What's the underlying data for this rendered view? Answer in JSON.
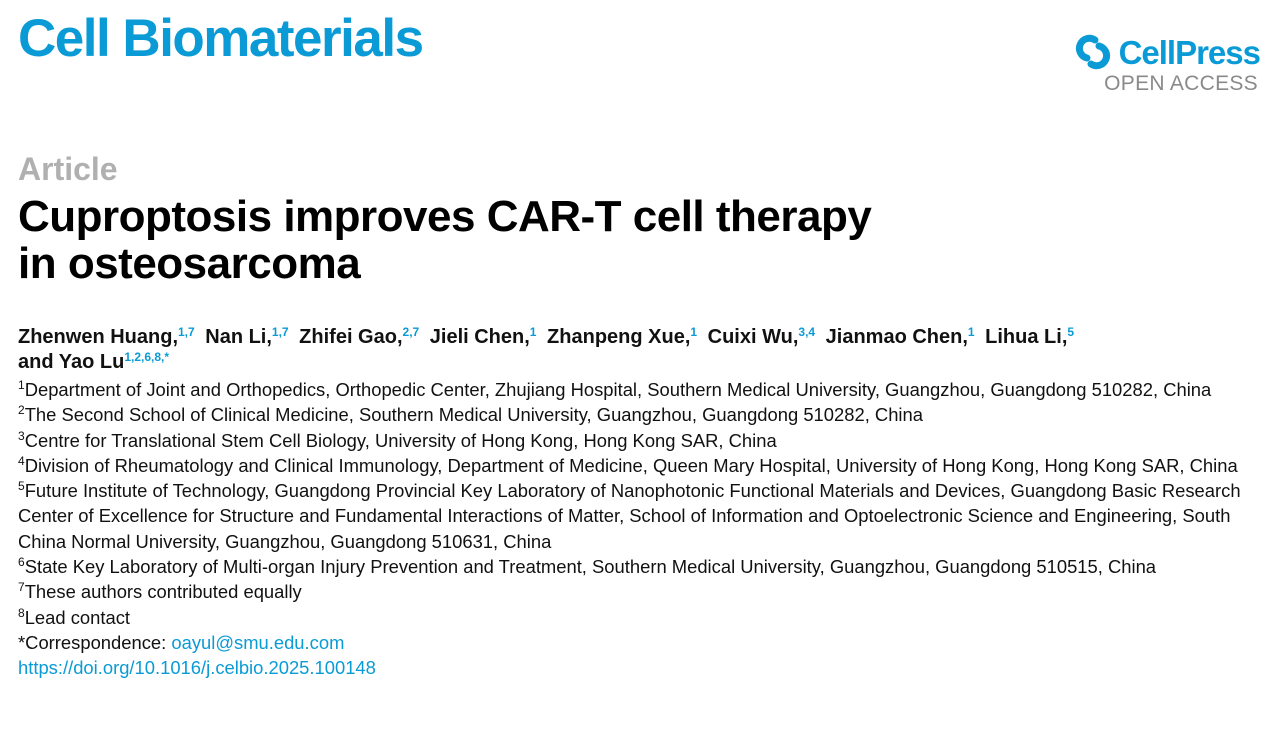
{
  "header": {
    "journal": "Cell Biomaterials",
    "publisher": "CellPress",
    "access": "OPEN ACCESS",
    "brand_color": "#0a9bd6"
  },
  "article": {
    "type": "Article",
    "title_line1": "Cuproptosis improves CAR-T cell therapy",
    "title_line2": "in osteosarcoma"
  },
  "authors": [
    {
      "name": "Zhenwen Huang,",
      "sup": "1,7"
    },
    {
      "name": "Nan Li,",
      "sup": "1,7"
    },
    {
      "name": "Zhifei Gao,",
      "sup": "2,7"
    },
    {
      "name": "Jieli Chen,",
      "sup": "1"
    },
    {
      "name": "Zhanpeng Xue,",
      "sup": "1"
    },
    {
      "name": "Cuixi Wu,",
      "sup": "3,4"
    },
    {
      "name": "Jianmao Chen,",
      "sup": "1"
    },
    {
      "name": "Lihua Li,",
      "sup": "5"
    },
    {
      "name": "and Yao Lu",
      "sup": "1,2,6,8,*"
    }
  ],
  "affiliations": [
    {
      "num": "1",
      "text": "Department of Joint and Orthopedics, Orthopedic Center, Zhujiang Hospital, Southern Medical University, Guangzhou, Guangdong 510282, China"
    },
    {
      "num": "2",
      "text": "The Second School of Clinical Medicine, Southern Medical University, Guangzhou, Guangdong 510282, China"
    },
    {
      "num": "3",
      "text": "Centre for Translational Stem Cell Biology, University of Hong Kong, Hong Kong SAR, China"
    },
    {
      "num": "4",
      "text": "Division of Rheumatology and Clinical Immunology, Department of Medicine, Queen Mary Hospital, University of Hong Kong, Hong Kong SAR, China"
    },
    {
      "num": "5",
      "text": "Future Institute of Technology, Guangdong Provincial Key Laboratory of Nanophotonic Functional Materials and Devices, Guangdong Basic Research Center of Excellence for Structure and Fundamental Interactions of Matter, School of Information and Optoelectronic Science and Engineering, South China Normal University, Guangzhou, Guangdong 510631, China"
    },
    {
      "num": "6",
      "text": "State Key Laboratory of Multi-organ Injury Prevention and Treatment, Southern Medical University, Guangzhou, Guangdong 510515, China"
    },
    {
      "num": "7",
      "text": "These authors contributed equally"
    },
    {
      "num": "8",
      "text": "Lead contact"
    }
  ],
  "correspondence": {
    "label": "*Correspondence: ",
    "email": "oayul@smu.edu.com"
  },
  "doi": "https://doi.org/10.1016/j.celbio.2025.100148"
}
